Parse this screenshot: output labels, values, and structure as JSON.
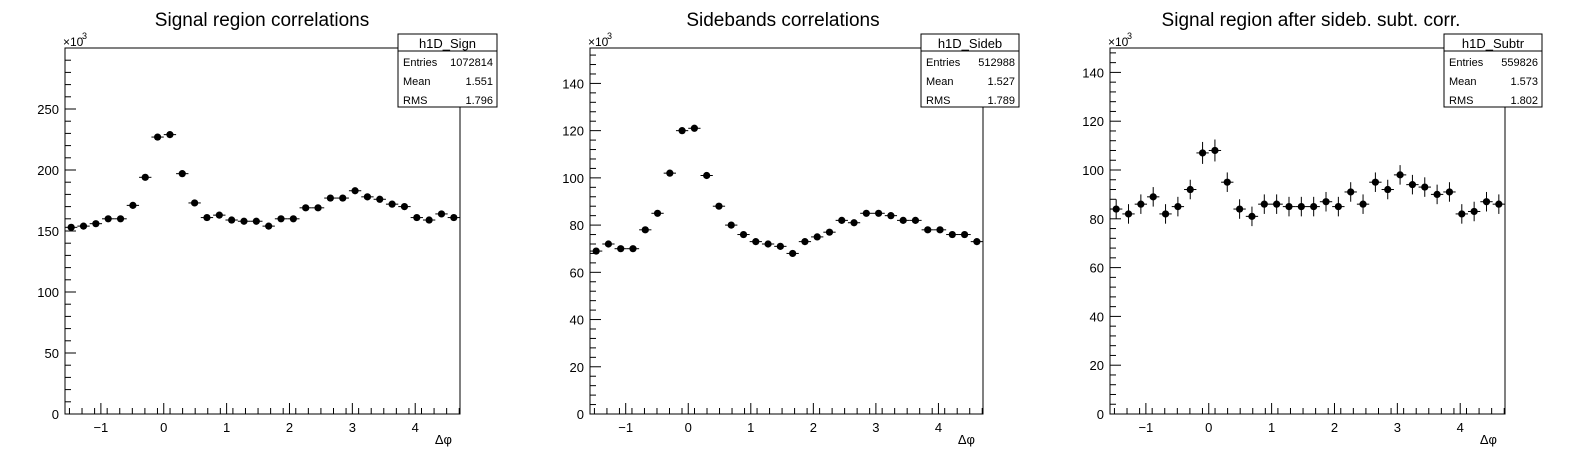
{
  "chart_data": [
    {
      "type": "scatter",
      "title": "Signal region correlations",
      "xlabel": "Δφ",
      "ylabel": "",
      "xlim": [
        -1.5708,
        4.7124
      ],
      "ylim": [
        0,
        300
      ],
      "y_multiplier_label": "×10",
      "y_multiplier_exp": "3",
      "x_ticks": [
        -1,
        0,
        1,
        2,
        3,
        4
      ],
      "y_ticks": [
        0,
        50,
        100,
        150,
        200,
        250
      ],
      "stats": {
        "name": "h1D_Sign",
        "entries_label": "Entries",
        "entries": "1072814",
        "mean_label": "Mean",
        "mean": "1.551",
        "rms_label": "RMS",
        "rms": "1.796"
      },
      "series": [
        {
          "x": [
            -1.4726,
            -1.2763,
            -1.0799,
            -0.8836,
            -0.6872,
            -0.4909,
            -0.2945,
            -0.0982,
            0.0982,
            0.2945,
            0.4909,
            0.6872,
            0.8836,
            1.0799,
            1.2763,
            1.4726,
            1.669,
            1.8653,
            2.0617,
            2.258,
            2.4544,
            2.6507,
            2.8471,
            3.0434,
            3.2398,
            3.4361,
            3.6325,
            3.8288,
            4.0252,
            4.2215,
            4.4179,
            4.6142
          ],
          "y": [
            153,
            154,
            156,
            160,
            160,
            171,
            194,
            227,
            229,
            197,
            173,
            161,
            163,
            159,
            158,
            158,
            154,
            160,
            160,
            169,
            169,
            177,
            177,
            183,
            178,
            176,
            172,
            170,
            161,
            159,
            164,
            161
          ],
          "yerr": [
            1.5,
            1.5,
            1.5,
            1.5,
            1.5,
            1.5,
            1.5,
            1.6,
            1.6,
            1.5,
            1.5,
            1.5,
            1.5,
            1.5,
            1.5,
            1.5,
            1.5,
            1.5,
            1.5,
            1.5,
            1.5,
            1.5,
            1.5,
            1.5,
            1.5,
            1.5,
            1.5,
            1.5,
            1.5,
            1.5,
            1.5,
            1.5
          ]
        }
      ]
    },
    {
      "type": "scatter",
      "title": "Sidebands correlations",
      "xlabel": "Δφ",
      "ylabel": "",
      "xlim": [
        -1.5708,
        4.7124
      ],
      "ylim": [
        0,
        155
      ],
      "y_multiplier_label": "×10",
      "y_multiplier_exp": "3",
      "x_ticks": [
        -1,
        0,
        1,
        2,
        3,
        4
      ],
      "y_ticks": [
        0,
        20,
        40,
        60,
        80,
        100,
        120,
        140
      ],
      "stats": {
        "name": "h1D_Sideb",
        "entries_label": "Entries",
        "entries": "512988",
        "mean_label": "Mean",
        "mean": "1.527",
        "rms_label": "RMS",
        "rms": "1.789"
      },
      "series": [
        {
          "x": [
            -1.4726,
            -1.2763,
            -1.0799,
            -0.8836,
            -0.6872,
            -0.4909,
            -0.2945,
            -0.0982,
            0.0982,
            0.2945,
            0.4909,
            0.6872,
            0.8836,
            1.0799,
            1.2763,
            1.4726,
            1.669,
            1.8653,
            2.0617,
            2.258,
            2.4544,
            2.6507,
            2.8471,
            3.0434,
            3.2398,
            3.4361,
            3.6325,
            3.8288,
            4.0252,
            4.2215,
            4.4179,
            4.6142
          ],
          "y": [
            69,
            72,
            70,
            70,
            78,
            85,
            102,
            120,
            121,
            101,
            88,
            80,
            76,
            73,
            72,
            71,
            68,
            73,
            75,
            77,
            82,
            81,
            85,
            85,
            84,
            82,
            82,
            78,
            78,
            76,
            76,
            73
          ],
          "yerr": [
            1,
            1,
            1,
            1,
            1,
            1,
            1,
            1.2,
            1.2,
            1,
            1,
            1,
            1,
            1,
            1,
            1,
            1,
            1,
            1,
            1,
            1,
            1,
            1,
            1,
            1,
            1,
            1,
            1,
            1,
            1,
            1,
            1
          ]
        }
      ]
    },
    {
      "type": "scatter",
      "title": "Signal region after sideb. subt. corr.",
      "xlabel": "Δφ",
      "ylabel": "",
      "xlim": [
        -1.5708,
        4.7124
      ],
      "ylim": [
        0,
        150
      ],
      "y_multiplier_label": "×10",
      "y_multiplier_exp": "3",
      "x_ticks": [
        -1,
        0,
        1,
        2,
        3,
        4
      ],
      "y_ticks": [
        0,
        20,
        40,
        60,
        80,
        100,
        120,
        140
      ],
      "stats": {
        "name": "h1D_Subtr",
        "entries_label": "Entries",
        "entries": "559826",
        "mean_label": "Mean",
        "mean": "1.573",
        "rms_label": "RMS",
        "rms": "1.802"
      },
      "series": [
        {
          "x": [
            -1.4726,
            -1.2763,
            -1.0799,
            -0.8836,
            -0.6872,
            -0.4909,
            -0.2945,
            -0.0982,
            0.0982,
            0.2945,
            0.4909,
            0.6872,
            0.8836,
            1.0799,
            1.2763,
            1.4726,
            1.669,
            1.8653,
            2.0617,
            2.258,
            2.4544,
            2.6507,
            2.8471,
            3.0434,
            3.2398,
            3.4361,
            3.6325,
            3.8288,
            4.0252,
            4.2215,
            4.4179,
            4.6142
          ],
          "y": [
            84,
            82,
            86,
            89,
            82,
            85,
            92,
            107,
            108,
            95,
            84,
            81,
            86,
            86,
            85,
            85,
            85,
            87,
            85,
            91,
            86,
            95,
            92,
            98,
            94,
            93,
            90,
            91,
            82,
            83,
            87,
            86
          ],
          "yerr": [
            4,
            4,
            4,
            4,
            4,
            4,
            4,
            4.5,
            4.5,
            4,
            4,
            4,
            4,
            4,
            4,
            4,
            4,
            4,
            4,
            4,
            4,
            4,
            4,
            4,
            4,
            4,
            4,
            4,
            4,
            4,
            4,
            4
          ]
        }
      ]
    }
  ]
}
